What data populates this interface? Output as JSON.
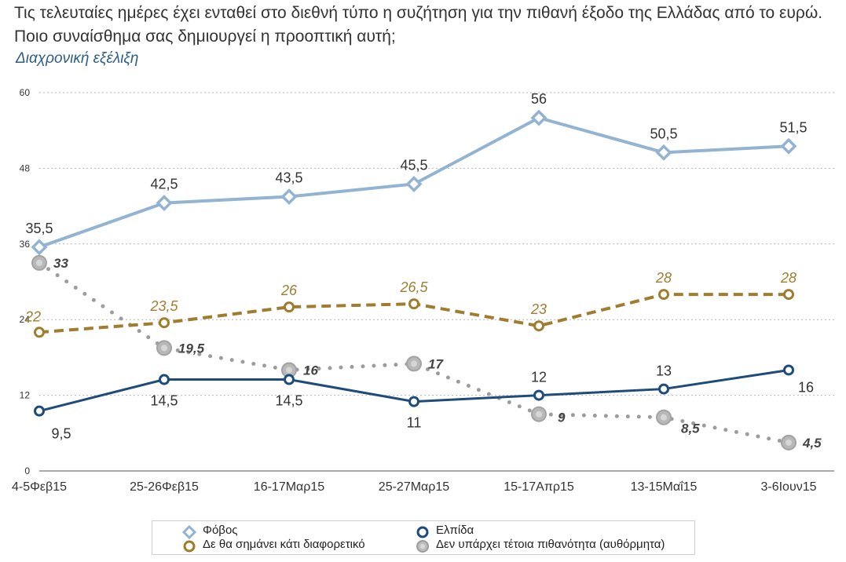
{
  "header": {
    "question": "Τις τελευταίες ημέρες έχει ενταθεί στο διεθνή τύπο η συζήτηση για την πιθανή έξοδο της Ελλάδας από το ευρώ. Ποιο συναίσθημα σας δημιουργεί η προοπτική αυτή;",
    "subtitle": "Διαχρονική εξέλιξη"
  },
  "chart_data": {
    "type": "line",
    "title": "",
    "xlabel": "",
    "ylabel": "",
    "categories": [
      "4-5Φεβ15",
      "25-26Φεβ15",
      "16-17Μαρ15",
      "25-27Μαρ15",
      "15-17Απρ15",
      "13-15Μαΐ15",
      "3-6Ιουν15"
    ],
    "ylim": [
      0,
      60
    ],
    "yticks": [
      0,
      12,
      24,
      36,
      48,
      60
    ],
    "grid": true,
    "legend_position": "bottom",
    "series": [
      {
        "name": "Φόβος",
        "values": [
          35.5,
          42.5,
          43.5,
          45.5,
          56,
          50.5,
          51.5
        ],
        "labels": [
          "35,5",
          "42,5",
          "43,5",
          "45,5",
          "56",
          "50,5",
          "51,5"
        ],
        "color": "#93b3d2",
        "style": "solid",
        "marker": "diamond"
      },
      {
        "name": "Ελπίδα",
        "values": [
          9.5,
          14.5,
          14.5,
          11,
          12,
          13,
          16
        ],
        "labels": [
          "9,5",
          "14,5",
          "14,5",
          "11",
          "12",
          "13",
          "16"
        ],
        "color": "#1d4c7a",
        "style": "solid",
        "marker": "circle"
      },
      {
        "name": "Δε θα σημάνει κάτι διαφορετικό",
        "values": [
          22,
          23.5,
          26,
          26.5,
          23,
          28,
          28
        ],
        "labels": [
          "22",
          "23,5",
          "26",
          "26,5",
          "23",
          "28",
          "28"
        ],
        "color": "#a07d2e",
        "style": "dashed",
        "marker": "circle"
      },
      {
        "name": "Δεν υπάρχει τέτοια πιθανότητα (αυθόρμητα)",
        "values": [
          33,
          19.5,
          16,
          17,
          9,
          8.5,
          4.5
        ],
        "labels": [
          "33",
          "19,5",
          "16",
          "17",
          "9",
          "8,5",
          "4,5"
        ],
        "color": "#9c9c9c",
        "style": "dotted",
        "marker": "circle"
      }
    ]
  }
}
